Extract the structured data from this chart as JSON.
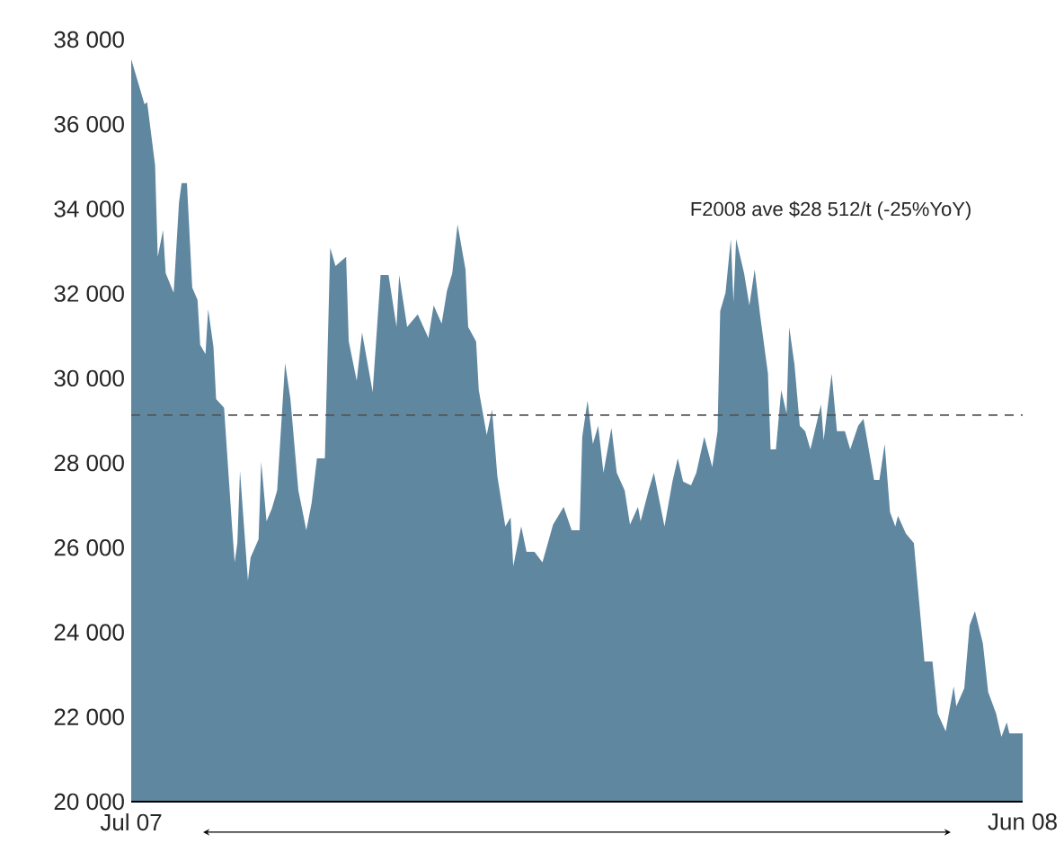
{
  "chart_data": {
    "type": "area",
    "x": [
      "2007-07-01",
      "2007-07-06",
      "2007-07-07",
      "2007-07-10",
      "2007-07-11",
      "2007-07-13",
      "2007-07-14",
      "2007-07-17",
      "2007-07-19",
      "2007-07-20",
      "2007-07-22",
      "2007-07-24",
      "2007-07-26",
      "2007-07-27",
      "2007-07-29",
      "2007-07-30",
      "2007-08-01",
      "2007-08-02",
      "2007-08-05",
      "2007-08-08",
      "2007-08-09",
      "2007-08-10",
      "2007-08-11",
      "2007-08-14",
      "2007-08-15",
      "2007-08-18",
      "2007-08-19",
      "2007-08-21",
      "2007-08-23",
      "2007-08-25",
      "2007-08-28",
      "2007-08-30",
      "2007-09-02",
      "2007-09-05",
      "2007-09-07",
      "2007-09-09",
      "2007-09-12",
      "2007-09-14",
      "2007-09-16",
      "2007-09-20",
      "2007-09-21",
      "2007-09-24",
      "2007-09-26",
      "2007-09-30",
      "2007-10-03",
      "2007-10-06",
      "2007-10-09",
      "2007-10-10",
      "2007-10-13",
      "2007-10-17",
      "2007-10-21",
      "2007-10-23",
      "2007-10-26",
      "2007-10-28",
      "2007-10-30",
      "2007-11-01",
      "2007-11-04",
      "2007-11-05",
      "2007-11-08",
      "2007-11-09",
      "2007-11-12",
      "2007-11-14",
      "2007-11-16",
      "2007-11-19",
      "2007-11-21",
      "2007-11-22",
      "2007-11-25",
      "2007-11-27",
      "2007-11-30",
      "2007-12-03",
      "2007-12-07",
      "2007-12-11",
      "2007-12-14",
      "2007-12-17",
      "2007-12-18",
      "2007-12-20",
      "2007-12-22",
      "2007-12-24",
      "2007-12-26",
      "2007-12-29",
      "2007-12-31",
      "2008-01-03",
      "2008-01-05",
      "2008-01-08",
      "2008-01-09",
      "2008-01-12",
      "2008-01-14",
      "2008-01-18",
      "2008-01-21",
      "2008-01-23",
      "2008-01-25",
      "2008-01-28",
      "2008-01-30",
      "2008-02-02",
      "2008-02-05",
      "2008-02-07",
      "2008-02-08",
      "2008-02-10",
      "2008-02-12",
      "2008-02-13",
      "2008-02-14",
      "2008-02-17",
      "2008-02-19",
      "2008-02-21",
      "2008-02-23",
      "2008-02-26",
      "2008-02-27",
      "2008-02-29",
      "2008-03-02",
      "2008-03-04",
      "2008-03-05",
      "2008-03-07",
      "2008-03-09",
      "2008-03-11",
      "2008-03-13",
      "2008-03-17",
      "2008-03-18",
      "2008-03-21",
      "2008-03-23",
      "2008-03-26",
      "2008-03-28",
      "2008-03-31",
      "2008-04-02",
      "2008-04-06",
      "2008-04-08",
      "2008-04-10",
      "2008-04-12",
      "2008-04-14",
      "2008-04-15",
      "2008-04-18",
      "2008-04-21",
      "2008-04-25",
      "2008-04-28",
      "2008-04-30",
      "2008-05-03",
      "2008-05-06",
      "2008-05-07",
      "2008-05-10",
      "2008-05-12",
      "2008-05-14",
      "2008-05-17",
      "2008-05-19",
      "2008-05-22",
      "2008-05-24",
      "2008-05-26",
      "2008-05-27",
      "2008-06-01"
    ],
    "series": [
      {
        "color": "#5f87a0",
        "values": [
          37540,
          36470,
          36520,
          35030,
          32870,
          33500,
          32480,
          32020,
          34140,
          34610,
          34610,
          32140,
          31850,
          30790,
          30570,
          31630,
          30740,
          29510,
          29300,
          26500,
          25650,
          26110,
          27810,
          25220,
          25770,
          26200,
          28030,
          26620,
          26920,
          27350,
          30360,
          29510,
          27350,
          26410,
          27050,
          28110,
          28110,
          33080,
          32650,
          32870,
          30870,
          29940,
          31080,
          29680,
          32440,
          32440,
          31210,
          32440,
          31210,
          31510,
          30950,
          31720,
          31290,
          32060,
          32480,
          33630,
          32570,
          31210,
          30870,
          29720,
          28660,
          29260,
          27690,
          26500,
          26710,
          25560,
          26500,
          25900,
          25900,
          25650,
          26540,
          26960,
          26410,
          26410,
          28620,
          29470,
          28450,
          28880,
          27770,
          28830,
          27770,
          27350,
          26540,
          26960,
          26620,
          27350,
          27770,
          26500,
          27560,
          28110,
          27560,
          27470,
          27770,
          28620,
          27900,
          28750,
          31590,
          32020,
          33290,
          31800,
          33290,
          32480,
          31720,
          32570,
          31510,
          30110,
          28320,
          28320,
          29720,
          29170,
          31210,
          30320,
          28880,
          28750,
          28320,
          29380,
          28540,
          30110,
          28750,
          28750,
          28320,
          28880,
          29040,
          27600,
          27600,
          28450,
          26840,
          26500,
          26750,
          26330,
          26110,
          23310,
          23310,
          22080,
          21660,
          22720,
          22250,
          22680,
          24160,
          24500,
          23740,
          22590,
          22080,
          21530,
          21870,
          21610,
          21610
        ]
      }
    ],
    "xlim": [
      "2007-07-01",
      "2008-06-01"
    ],
    "xticks": [
      {
        "value": "2007-07-01",
        "label": "Jul 07"
      },
      {
        "value": "2008-06-01",
        "label": "Jun 08"
      }
    ],
    "ylim": [
      20000,
      38000
    ],
    "yticks": [
      {
        "value": 20000,
        "label": "20 000"
      },
      {
        "value": 22000,
        "label": "22 000"
      },
      {
        "value": 24000,
        "label": "24 000"
      },
      {
        "value": 26000,
        "label": "26 000"
      },
      {
        "value": 28000,
        "label": "28 000"
      },
      {
        "value": 30000,
        "label": "30 000"
      },
      {
        "value": 32000,
        "label": "32 000"
      },
      {
        "value": 34000,
        "label": "34 000"
      },
      {
        "value": 36000,
        "label": "36 000"
      },
      {
        "value": 38000,
        "label": "38 000"
      }
    ],
    "ref_lines": [
      {
        "axis": "y",
        "value": 29130,
        "color": "#555555",
        "line_style": "dashed"
      }
    ],
    "annotations": [
      "F2008 ave $28 512/t (-25%YoY)"
    ],
    "grid": false
  }
}
